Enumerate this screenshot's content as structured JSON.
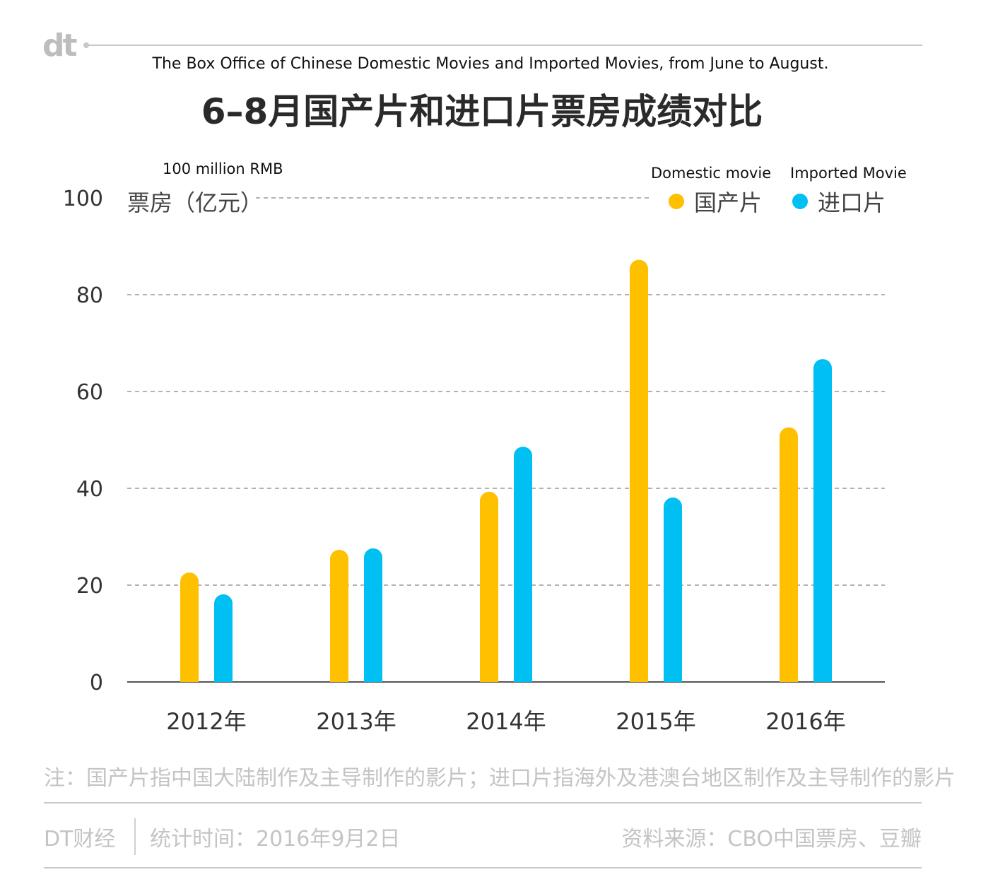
{
  "logo": "dt",
  "subtitle_en": "The Box Office of Chinese Domestic Movies  and Imported Movies, from June to August.",
  "title_cn": "6–8月国产片和进口片票房成绩对比",
  "unit_en": "100 million RMB",
  "unit_cn": "票房（亿元）",
  "legend": {
    "domestic_en": "Domestic movie",
    "domestic_cn": "国产片",
    "imported_en": "Imported Movie",
    "imported_cn": "进口片"
  },
  "colors": {
    "domestic": "#FFC000",
    "imported": "#00BFF3",
    "grid": "#9a9a9a",
    "axis": "#555555"
  },
  "note": "注：国产片指中国大陆制作及主导制作的影片；进口片指海外及港澳台地区制作及主导制作的影片",
  "footer": {
    "brand": "DT财经",
    "date": "统计时间：2016年9月2日",
    "source": "资料来源：CBO中国票房、豆瓣"
  },
  "chart_data": {
    "type": "bar",
    "categories": [
      "2012年",
      "2013年",
      "2014年",
      "2015年",
      "2016年"
    ],
    "series": [
      {
        "name": "国产片",
        "values": [
          22.6,
          27.3,
          39.3,
          87.2,
          52.6
        ]
      },
      {
        "name": "进口片",
        "values": [
          18.1,
          27.6,
          48.6,
          38.1,
          66.7
        ]
      }
    ],
    "ylim": [
      0,
      100
    ],
    "yticks": [
      0,
      20,
      40,
      60,
      80,
      100
    ],
    "ylabel": "票房（亿元）",
    "xlabel": "",
    "grid": true,
    "legend_position": "top-right"
  }
}
